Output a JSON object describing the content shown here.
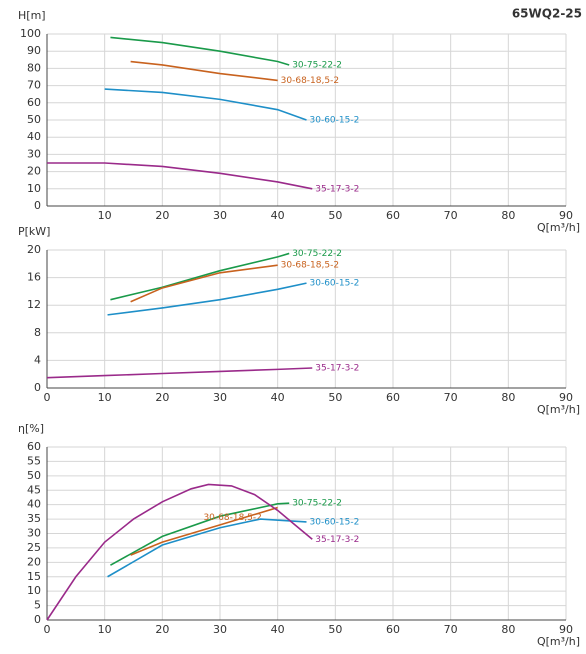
{
  "chart_data": [
    {
      "type": "line",
      "title": "65WQ2-25",
      "y_label": "H[m]",
      "x_label": "Q[m³/h]",
      "xlim": [
        0,
        90
      ],
      "xticks": [
        10,
        20,
        30,
        40,
        50,
        60,
        70,
        80,
        90
      ],
      "ylim": [
        0,
        100
      ],
      "yticks": [
        0,
        10,
        20,
        30,
        40,
        50,
        60,
        70,
        80,
        90,
        100
      ],
      "grid": true,
      "series": [
        {
          "name": "30-75-22-2",
          "color": "#1a9a4a",
          "x": [
            11,
            20,
            30,
            40,
            42
          ],
          "values": [
            98,
            95,
            90,
            84,
            82
          ]
        },
        {
          "name": "30-68-18,5-2",
          "color": "#c8621e",
          "x": [
            14.5,
            20,
            30,
            40
          ],
          "values": [
            84,
            82,
            77,
            73
          ]
        },
        {
          "name": "30-60-15-2",
          "color": "#1e8fc8",
          "x": [
            10,
            20,
            30,
            40,
            45
          ],
          "values": [
            68,
            66,
            62,
            56,
            50
          ]
        },
        {
          "name": "35-17-3-2",
          "color": "#9a2a8a",
          "x": [
            0,
            10,
            20,
            30,
            40,
            46
          ],
          "values": [
            25,
            25,
            23,
            19,
            14,
            10
          ]
        }
      ]
    },
    {
      "type": "line",
      "y_label": "P[kW]",
      "x_label": "Q[m³/h]",
      "xlim": [
        0,
        90
      ],
      "xticks": [
        0,
        10,
        20,
        30,
        40,
        50,
        60,
        70,
        80,
        90
      ],
      "ylim": [
        0,
        20
      ],
      "yticks": [
        0,
        4,
        8,
        12,
        16,
        20
      ],
      "grid": true,
      "series": [
        {
          "name": "30-75-22-2",
          "color": "#1a9a4a",
          "x": [
            11,
            20,
            30,
            40,
            42
          ],
          "values": [
            12.8,
            14.6,
            17,
            19,
            19.5
          ]
        },
        {
          "name": "30-68-18,5-2",
          "color": "#c8621e",
          "x": [
            14.5,
            20,
            30,
            40
          ],
          "values": [
            12.5,
            14.5,
            16.7,
            17.8
          ]
        },
        {
          "name": "30-60-15-2",
          "color": "#1e8fc8",
          "x": [
            10.5,
            20,
            30,
            40,
            45
          ],
          "values": [
            10.6,
            11.6,
            12.8,
            14.3,
            15.2
          ]
        },
        {
          "name": "35-17-3-2",
          "color": "#9a2a8a",
          "x": [
            0,
            10,
            20,
            30,
            40,
            46
          ],
          "values": [
            1.5,
            1.8,
            2.1,
            2.4,
            2.7,
            2.9
          ]
        }
      ]
    },
    {
      "type": "line",
      "y_label": "η[%]",
      "x_label": "Q[m³/h]",
      "xlim": [
        0,
        90
      ],
      "xticks": [
        0,
        10,
        20,
        30,
        40,
        50,
        60,
        70,
        80,
        90
      ],
      "ylim": [
        0,
        60
      ],
      "yticks": [
        0,
        5,
        10,
        15,
        20,
        25,
        30,
        35,
        40,
        45,
        50,
        55,
        60
      ],
      "grid": true,
      "series": [
        {
          "name": "30-75-22-2",
          "color": "#1a9a4a",
          "x": [
            11,
            20,
            30,
            40,
            42
          ],
          "values": [
            19,
            29,
            36,
            40.3,
            40.5
          ]
        },
        {
          "name": "30-68-18,5-2",
          "color": "#c8621e",
          "x": [
            14.5,
            20,
            30,
            40
          ],
          "values": [
            22.5,
            27,
            33,
            39
          ]
        },
        {
          "name": "30-60-15-2",
          "color": "#1e8fc8",
          "x": [
            10.5,
            20,
            30,
            37,
            45
          ],
          "values": [
            15,
            26,
            32,
            35,
            34
          ]
        },
        {
          "name": "35-17-3-2",
          "color": "#9a2a8a",
          "x": [
            0,
            5,
            10,
            15,
            20,
            25,
            28,
            32,
            36,
            40,
            43,
            46
          ],
          "values": [
            0,
            15,
            27,
            35,
            41,
            45.5,
            47,
            46.5,
            43.5,
            38,
            33,
            28
          ]
        }
      ]
    }
  ]
}
